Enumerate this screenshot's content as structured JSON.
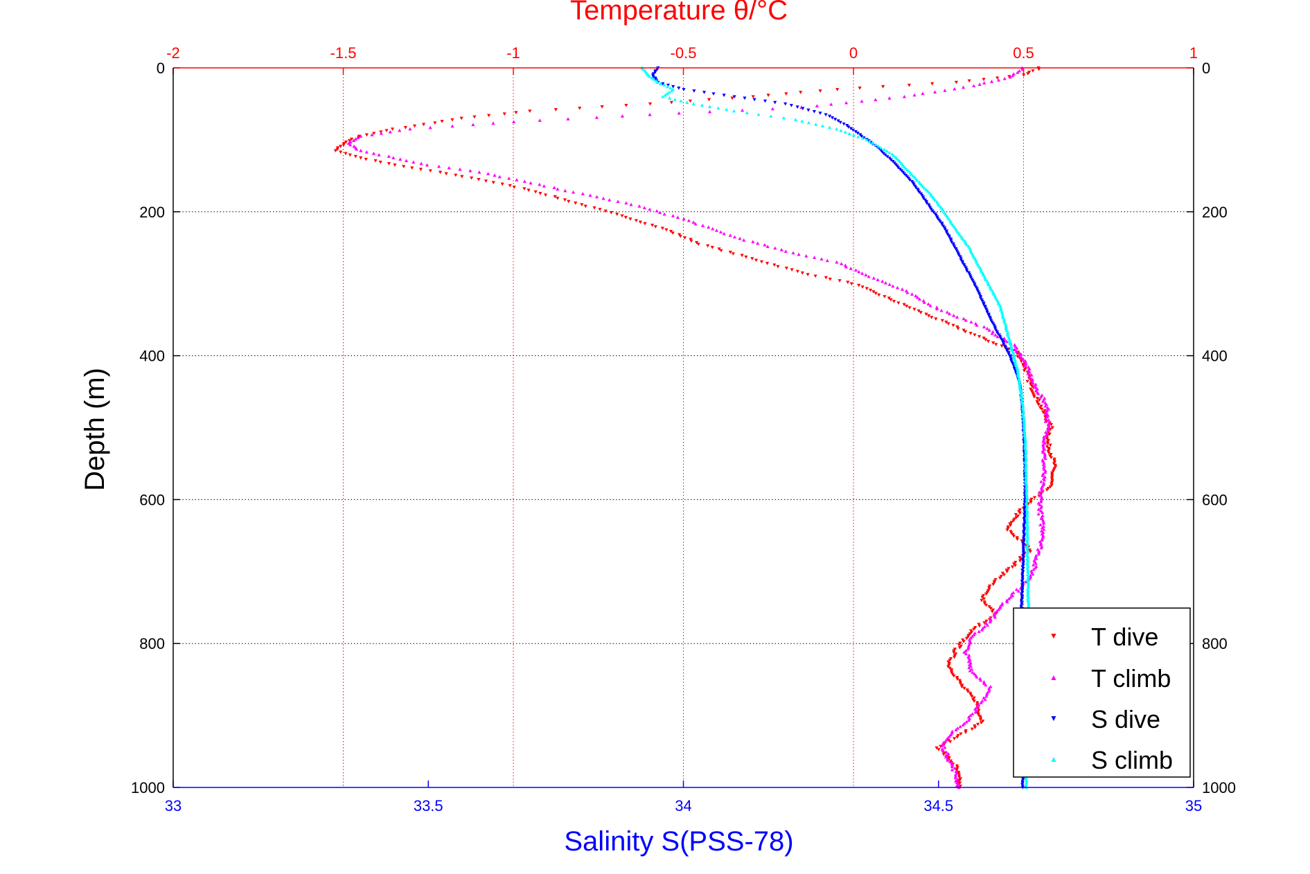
{
  "chart_data": {
    "type": "scatter",
    "title": "Temperature θ/°C",
    "xlabel_top": "Temperature θ/°C",
    "xlabel_bottom": "Salinity S(PSS-78)",
    "ylabel": "Depth (m)",
    "top_axis": {
      "quantity": "Temperature",
      "range": [
        -2,
        1
      ],
      "ticks": [
        "-2",
        "-1.5",
        "-1",
        "-0.5",
        "0",
        "0.5",
        "1"
      ],
      "color": "#ff0000"
    },
    "bottom_axis": {
      "quantity": "Salinity",
      "range": [
        33,
        35
      ],
      "ticks": [
        "33",
        "33.5",
        "34",
        "34.5",
        "35"
      ],
      "color": "#0000ff"
    },
    "y_axis": {
      "range": [
        0,
        1000
      ],
      "reversed": true,
      "ticks": [
        "0",
        "200",
        "400",
        "600",
        "800",
        "1000"
      ]
    },
    "grid": true,
    "legend": {
      "placement": "bottom-right",
      "entries": [
        "T dive",
        "T climb",
        "S dive",
        "S climb"
      ]
    },
    "series": [
      {
        "name": "T dive",
        "axis": "temperature",
        "marker": "triangle-down",
        "color": "#ff0000",
        "points": [
          [
            0.55,
            0
          ],
          [
            0.5,
            10
          ],
          [
            0.3,
            20
          ],
          [
            -0.05,
            30
          ],
          [
            -0.3,
            40
          ],
          [
            -0.6,
            50
          ],
          [
            -0.95,
            60
          ],
          [
            -1.15,
            70
          ],
          [
            -1.35,
            85
          ],
          [
            -1.45,
            95
          ],
          [
            -1.5,
            105
          ],
          [
            -1.52,
            115
          ],
          [
            -1.45,
            125
          ],
          [
            -1.35,
            135
          ],
          [
            -1.22,
            145
          ],
          [
            -1.1,
            155
          ],
          [
            -0.95,
            170
          ],
          [
            -0.8,
            190
          ],
          [
            -0.65,
            210
          ],
          [
            -0.55,
            225
          ],
          [
            -0.45,
            245
          ],
          [
            -0.3,
            265
          ],
          [
            -0.15,
            285
          ],
          [
            0.0,
            300
          ],
          [
            0.1,
            320
          ],
          [
            0.2,
            340
          ],
          [
            0.3,
            360
          ],
          [
            0.4,
            380
          ],
          [
            0.48,
            395
          ],
          [
            0.5,
            410
          ],
          [
            0.52,
            440
          ],
          [
            0.55,
            470
          ],
          [
            0.58,
            500
          ],
          [
            0.57,
            520
          ],
          [
            0.59,
            550
          ],
          [
            0.58,
            580
          ],
          [
            0.5,
            610
          ],
          [
            0.45,
            640
          ],
          [
            0.52,
            670
          ],
          [
            0.45,
            700
          ],
          [
            0.4,
            720
          ],
          [
            0.38,
            740
          ],
          [
            0.42,
            760
          ],
          [
            0.35,
            780
          ],
          [
            0.3,
            810
          ],
          [
            0.28,
            830
          ],
          [
            0.32,
            860
          ],
          [
            0.36,
            880
          ],
          [
            0.38,
            910
          ],
          [
            0.3,
            930
          ],
          [
            0.25,
            945
          ],
          [
            0.3,
            970
          ],
          [
            0.31,
            990
          ],
          [
            0.31,
            1000
          ]
        ]
      },
      {
        "name": "T climb",
        "axis": "temperature",
        "marker": "triangle-up",
        "color": "#ff00ff",
        "points": [
          [
            0.5,
            0
          ],
          [
            0.45,
            15
          ],
          [
            0.35,
            25
          ],
          [
            0.15,
            40
          ],
          [
            -0.15,
            55
          ],
          [
            -0.6,
            65
          ],
          [
            -1.0,
            75
          ],
          [
            -1.3,
            85
          ],
          [
            -1.45,
            95
          ],
          [
            -1.48,
            105
          ],
          [
            -1.45,
            115
          ],
          [
            -1.35,
            125
          ],
          [
            -1.25,
            135
          ],
          [
            -1.1,
            145
          ],
          [
            -0.95,
            160
          ],
          [
            -0.8,
            175
          ],
          [
            -0.65,
            190
          ],
          [
            -0.5,
            210
          ],
          [
            -0.35,
            235
          ],
          [
            -0.2,
            255
          ],
          [
            -0.05,
            270
          ],
          [
            0.05,
            290
          ],
          [
            0.15,
            310
          ],
          [
            0.25,
            335
          ],
          [
            0.38,
            360
          ],
          [
            0.47,
            385
          ],
          [
            0.5,
            405
          ],
          [
            0.53,
            440
          ],
          [
            0.57,
            470
          ],
          [
            0.57,
            500
          ],
          [
            0.56,
            530
          ],
          [
            0.56,
            560
          ],
          [
            0.55,
            590
          ],
          [
            0.55,
            620
          ],
          [
            0.56,
            650
          ],
          [
            0.54,
            680
          ],
          [
            0.52,
            710
          ],
          [
            0.45,
            740
          ],
          [
            0.4,
            770
          ],
          [
            0.35,
            790
          ],
          [
            0.33,
            810
          ],
          [
            0.35,
            840
          ],
          [
            0.4,
            860
          ],
          [
            0.38,
            880
          ],
          [
            0.35,
            900
          ],
          [
            0.3,
            920
          ],
          [
            0.26,
            940
          ],
          [
            0.28,
            960
          ],
          [
            0.3,
            980
          ],
          [
            0.31,
            1000
          ]
        ]
      },
      {
        "name": "S dive",
        "axis": "salinity",
        "marker": "triangle-down",
        "color": "#0000ff",
        "points": [
          [
            33.95,
            0
          ],
          [
            33.94,
            10
          ],
          [
            33.95,
            20
          ],
          [
            34.0,
            30
          ],
          [
            34.1,
            40
          ],
          [
            34.2,
            50
          ],
          [
            34.28,
            65
          ],
          [
            34.32,
            80
          ],
          [
            34.35,
            95
          ],
          [
            34.38,
            110
          ],
          [
            34.41,
            130
          ],
          [
            34.45,
            160
          ],
          [
            34.48,
            190
          ],
          [
            34.51,
            220
          ],
          [
            34.54,
            260
          ],
          [
            34.57,
            300
          ],
          [
            34.61,
            360
          ],
          [
            34.64,
            400
          ],
          [
            34.66,
            440
          ],
          [
            34.665,
            480
          ],
          [
            34.668,
            520
          ],
          [
            34.67,
            580
          ],
          [
            34.668,
            640
          ],
          [
            34.665,
            700
          ],
          [
            34.662,
            760
          ],
          [
            34.663,
            820
          ],
          [
            34.664,
            880
          ],
          [
            34.665,
            940
          ],
          [
            34.665,
            1000
          ]
        ]
      },
      {
        "name": "S climb",
        "axis": "salinity",
        "marker": "triangle-up",
        "color": "#00ffff",
        "points": [
          [
            33.92,
            0
          ],
          [
            33.93,
            10
          ],
          [
            33.95,
            20
          ],
          [
            33.98,
            30
          ],
          [
            33.96,
            40
          ],
          [
            34.02,
            50
          ],
          [
            34.1,
            60
          ],
          [
            34.22,
            72
          ],
          [
            34.3,
            85
          ],
          [
            34.36,
            100
          ],
          [
            34.41,
            120
          ],
          [
            34.45,
            150
          ],
          [
            34.49,
            180
          ],
          [
            34.52,
            210
          ],
          [
            34.56,
            250
          ],
          [
            34.59,
            290
          ],
          [
            34.62,
            330
          ],
          [
            34.64,
            380
          ],
          [
            34.655,
            420
          ],
          [
            34.665,
            470
          ],
          [
            34.67,
            520
          ],
          [
            34.672,
            580
          ],
          [
            34.674,
            640
          ],
          [
            34.675,
            700
          ],
          [
            34.676,
            760
          ],
          [
            34.674,
            820
          ],
          [
            34.673,
            880
          ],
          [
            34.672,
            940
          ],
          [
            34.672,
            1000
          ]
        ]
      }
    ]
  }
}
